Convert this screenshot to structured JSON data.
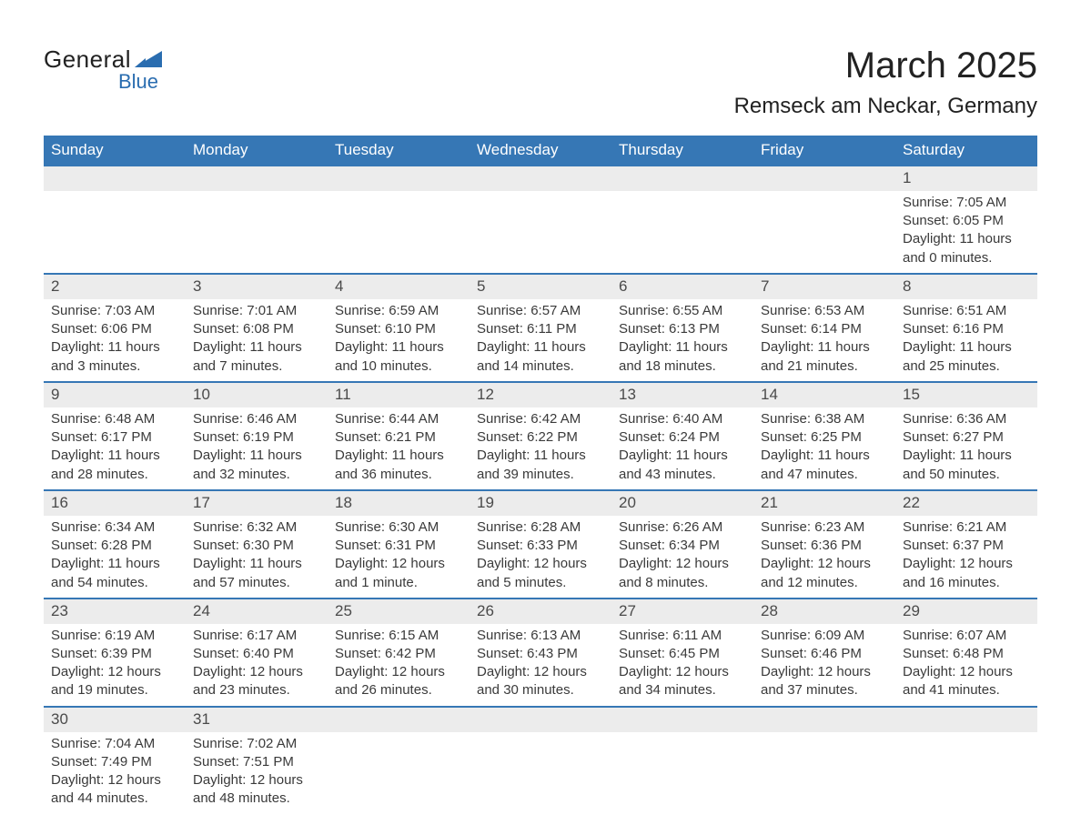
{
  "logo": {
    "text1": "General",
    "text2": "Blue",
    "icon_color": "#2a6db0"
  },
  "title": "March 2025",
  "location": "Remseck am Neckar, Germany",
  "colors": {
    "header_bg": "#3677b5",
    "header_text": "#ffffff",
    "daynum_bg": "#ececec",
    "row_separator": "#3677b5",
    "body_text": "#3a3a3a"
  },
  "weekdays": [
    "Sunday",
    "Monday",
    "Tuesday",
    "Wednesday",
    "Thursday",
    "Friday",
    "Saturday"
  ],
  "weeks": [
    [
      null,
      null,
      null,
      null,
      null,
      null,
      {
        "n": "1",
        "sunrise": "Sunrise: 7:05 AM",
        "sunset": "Sunset: 6:05 PM",
        "d1": "Daylight: 11 hours",
        "d2": "and 0 minutes."
      }
    ],
    [
      {
        "n": "2",
        "sunrise": "Sunrise: 7:03 AM",
        "sunset": "Sunset: 6:06 PM",
        "d1": "Daylight: 11 hours",
        "d2": "and 3 minutes."
      },
      {
        "n": "3",
        "sunrise": "Sunrise: 7:01 AM",
        "sunset": "Sunset: 6:08 PM",
        "d1": "Daylight: 11 hours",
        "d2": "and 7 minutes."
      },
      {
        "n": "4",
        "sunrise": "Sunrise: 6:59 AM",
        "sunset": "Sunset: 6:10 PM",
        "d1": "Daylight: 11 hours",
        "d2": "and 10 minutes."
      },
      {
        "n": "5",
        "sunrise": "Sunrise: 6:57 AM",
        "sunset": "Sunset: 6:11 PM",
        "d1": "Daylight: 11 hours",
        "d2": "and 14 minutes."
      },
      {
        "n": "6",
        "sunrise": "Sunrise: 6:55 AM",
        "sunset": "Sunset: 6:13 PM",
        "d1": "Daylight: 11 hours",
        "d2": "and 18 minutes."
      },
      {
        "n": "7",
        "sunrise": "Sunrise: 6:53 AM",
        "sunset": "Sunset: 6:14 PM",
        "d1": "Daylight: 11 hours",
        "d2": "and 21 minutes."
      },
      {
        "n": "8",
        "sunrise": "Sunrise: 6:51 AM",
        "sunset": "Sunset: 6:16 PM",
        "d1": "Daylight: 11 hours",
        "d2": "and 25 minutes."
      }
    ],
    [
      {
        "n": "9",
        "sunrise": "Sunrise: 6:48 AM",
        "sunset": "Sunset: 6:17 PM",
        "d1": "Daylight: 11 hours",
        "d2": "and 28 minutes."
      },
      {
        "n": "10",
        "sunrise": "Sunrise: 6:46 AM",
        "sunset": "Sunset: 6:19 PM",
        "d1": "Daylight: 11 hours",
        "d2": "and 32 minutes."
      },
      {
        "n": "11",
        "sunrise": "Sunrise: 6:44 AM",
        "sunset": "Sunset: 6:21 PM",
        "d1": "Daylight: 11 hours",
        "d2": "and 36 minutes."
      },
      {
        "n": "12",
        "sunrise": "Sunrise: 6:42 AM",
        "sunset": "Sunset: 6:22 PM",
        "d1": "Daylight: 11 hours",
        "d2": "and 39 minutes."
      },
      {
        "n": "13",
        "sunrise": "Sunrise: 6:40 AM",
        "sunset": "Sunset: 6:24 PM",
        "d1": "Daylight: 11 hours",
        "d2": "and 43 minutes."
      },
      {
        "n": "14",
        "sunrise": "Sunrise: 6:38 AM",
        "sunset": "Sunset: 6:25 PM",
        "d1": "Daylight: 11 hours",
        "d2": "and 47 minutes."
      },
      {
        "n": "15",
        "sunrise": "Sunrise: 6:36 AM",
        "sunset": "Sunset: 6:27 PM",
        "d1": "Daylight: 11 hours",
        "d2": "and 50 minutes."
      }
    ],
    [
      {
        "n": "16",
        "sunrise": "Sunrise: 6:34 AM",
        "sunset": "Sunset: 6:28 PM",
        "d1": "Daylight: 11 hours",
        "d2": "and 54 minutes."
      },
      {
        "n": "17",
        "sunrise": "Sunrise: 6:32 AM",
        "sunset": "Sunset: 6:30 PM",
        "d1": "Daylight: 11 hours",
        "d2": "and 57 minutes."
      },
      {
        "n": "18",
        "sunrise": "Sunrise: 6:30 AM",
        "sunset": "Sunset: 6:31 PM",
        "d1": "Daylight: 12 hours",
        "d2": "and 1 minute."
      },
      {
        "n": "19",
        "sunrise": "Sunrise: 6:28 AM",
        "sunset": "Sunset: 6:33 PM",
        "d1": "Daylight: 12 hours",
        "d2": "and 5 minutes."
      },
      {
        "n": "20",
        "sunrise": "Sunrise: 6:26 AM",
        "sunset": "Sunset: 6:34 PM",
        "d1": "Daylight: 12 hours",
        "d2": "and 8 minutes."
      },
      {
        "n": "21",
        "sunrise": "Sunrise: 6:23 AM",
        "sunset": "Sunset: 6:36 PM",
        "d1": "Daylight: 12 hours",
        "d2": "and 12 minutes."
      },
      {
        "n": "22",
        "sunrise": "Sunrise: 6:21 AM",
        "sunset": "Sunset: 6:37 PM",
        "d1": "Daylight: 12 hours",
        "d2": "and 16 minutes."
      }
    ],
    [
      {
        "n": "23",
        "sunrise": "Sunrise: 6:19 AM",
        "sunset": "Sunset: 6:39 PM",
        "d1": "Daylight: 12 hours",
        "d2": "and 19 minutes."
      },
      {
        "n": "24",
        "sunrise": "Sunrise: 6:17 AM",
        "sunset": "Sunset: 6:40 PM",
        "d1": "Daylight: 12 hours",
        "d2": "and 23 minutes."
      },
      {
        "n": "25",
        "sunrise": "Sunrise: 6:15 AM",
        "sunset": "Sunset: 6:42 PM",
        "d1": "Daylight: 12 hours",
        "d2": "and 26 minutes."
      },
      {
        "n": "26",
        "sunrise": "Sunrise: 6:13 AM",
        "sunset": "Sunset: 6:43 PM",
        "d1": "Daylight: 12 hours",
        "d2": "and 30 minutes."
      },
      {
        "n": "27",
        "sunrise": "Sunrise: 6:11 AM",
        "sunset": "Sunset: 6:45 PM",
        "d1": "Daylight: 12 hours",
        "d2": "and 34 minutes."
      },
      {
        "n": "28",
        "sunrise": "Sunrise: 6:09 AM",
        "sunset": "Sunset: 6:46 PM",
        "d1": "Daylight: 12 hours",
        "d2": "and 37 minutes."
      },
      {
        "n": "29",
        "sunrise": "Sunrise: 6:07 AM",
        "sunset": "Sunset: 6:48 PM",
        "d1": "Daylight: 12 hours",
        "d2": "and 41 minutes."
      }
    ],
    [
      {
        "n": "30",
        "sunrise": "Sunrise: 7:04 AM",
        "sunset": "Sunset: 7:49 PM",
        "d1": "Daylight: 12 hours",
        "d2": "and 44 minutes."
      },
      {
        "n": "31",
        "sunrise": "Sunrise: 7:02 AM",
        "sunset": "Sunset: 7:51 PM",
        "d1": "Daylight: 12 hours",
        "d2": "and 48 minutes."
      },
      null,
      null,
      null,
      null,
      null
    ]
  ]
}
